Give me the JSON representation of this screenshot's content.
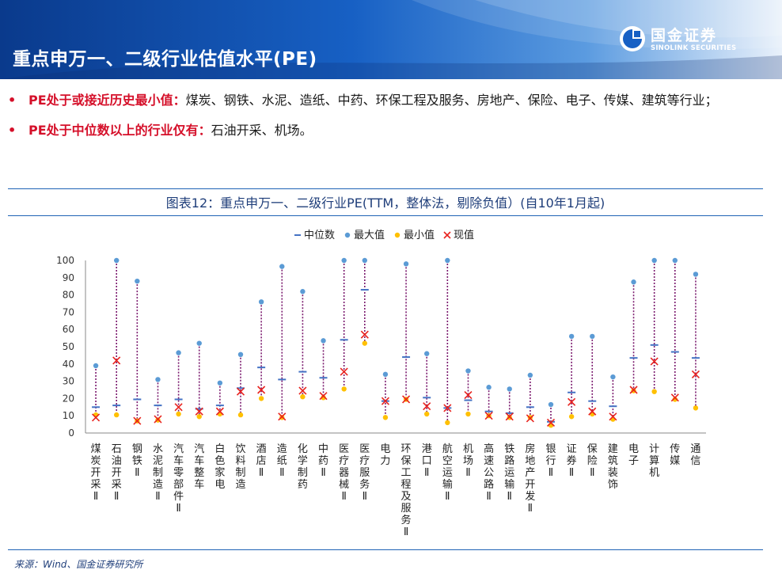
{
  "header": {
    "title": "重点申万一、二级行业估值水平(PE)",
    "logo_cn": "国金证券",
    "logo_en": "SINOLINK SECURITIES"
  },
  "bullets": [
    {
      "highlight": "PE处于或接近历史最小值：",
      "text": "煤炭、钢铁、水泥、造纸、中药、环保工程及服务、房地产、保险、电子、传媒、建筑等行业；"
    },
    {
      "highlight": "PE处于中位数以上的行业仅有：",
      "text": "石油开采、机场。"
    }
  ],
  "caption": "图表12：重点申万一、二级行业PE(TTM，整体法，剔除负值）(自10年1月起)",
  "source": "来源：Wind、国金证券研究所",
  "colors": {
    "median": "#4472c4",
    "max": "#5b9bd5",
    "min": "#ffc000",
    "current": "#e8231f",
    "range": "#7b1a6e"
  },
  "chart_data": {
    "type": "scatter",
    "categories": [
      "煤炭开采Ⅱ",
      "石油开采Ⅱ",
      "钢铁Ⅱ",
      "水泥制造Ⅱ",
      "汽车零部件Ⅱ",
      "汽车整车",
      "白色家电",
      "饮料制造",
      "酒店Ⅱ",
      "造纸Ⅱ",
      "化学制药",
      "中药Ⅱ",
      "医疗器械Ⅱ",
      "医疗服务Ⅱ",
      "电力",
      "环保工程及服务Ⅱ",
      "港口Ⅱ",
      "航空运输Ⅱ",
      "机场Ⅱ",
      "高速公路Ⅱ",
      "铁路运输Ⅱ",
      "房地产开发Ⅱ",
      "银行Ⅱ",
      "证券Ⅱ",
      "保险Ⅱ",
      "建筑装饰",
      "电子",
      "计算机",
      "传媒",
      "通信"
    ],
    "ylim": [
      0,
      100
    ],
    "yticks": [
      0,
      10,
      20,
      30,
      40,
      50,
      60,
      70,
      80,
      90,
      100
    ],
    "legend": [
      "中位数",
      "最大值",
      "最小值",
      "现值"
    ],
    "legend_position": "top",
    "series": [
      {
        "name": "中位数",
        "values": [
          15,
          16,
          19.5,
          16,
          19.5,
          14,
          16,
          26,
          38,
          31,
          35.5,
          32,
          54,
          83,
          18.5,
          44,
          20.5,
          14.5,
          19,
          12.5,
          11.5,
          15,
          6.5,
          23.5,
          18.5,
          15.5,
          43.5,
          51,
          47,
          43.5
        ]
      },
      {
        "name": "最大值",
        "values": [
          39,
          100,
          88,
          31,
          46.5,
          52,
          29,
          45.5,
          76,
          96.5,
          82,
          53.5,
          100,
          100,
          34,
          98,
          46,
          100,
          36,
          26.5,
          25.5,
          33.5,
          16.5,
          56,
          56,
          32.5,
          87.5,
          100,
          100,
          92
        ]
      },
      {
        "name": "最小值",
        "values": [
          10.5,
          10.5,
          7,
          7.5,
          11,
          9.5,
          11,
          10.5,
          20,
          9,
          21,
          20.5,
          25.5,
          52,
          9,
          19.5,
          11,
          6,
          11,
          10,
          9,
          9,
          4.5,
          9.5,
          11,
          8,
          24.5,
          24,
          19.5,
          14.5
        ]
      },
      {
        "name": "现值",
        "values": [
          9,
          42,
          7,
          8,
          15,
          12.5,
          12.5,
          24,
          25,
          9.5,
          24.5,
          21.5,
          35.5,
          57,
          18.5,
          19.5,
          15.5,
          14.5,
          22,
          10,
          9.5,
          8.5,
          6,
          18,
          12.5,
          9.5,
          25,
          41.5,
          20.5,
          34
        ]
      }
    ]
  }
}
